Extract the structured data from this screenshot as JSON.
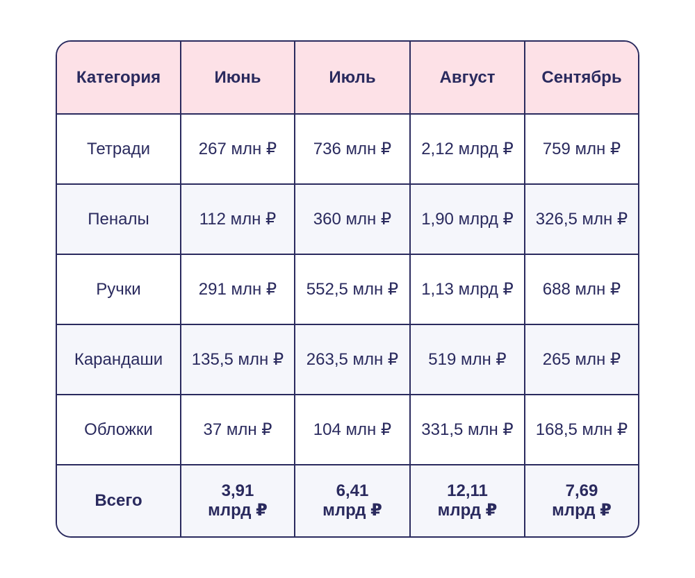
{
  "chart_data": {
    "type": "table",
    "columns": [
      "Категория",
      "Июнь",
      "Июль",
      "Август",
      "Сентябрь"
    ],
    "rows": [
      [
        "Тетради",
        "267 млн ₽",
        "736 млн ₽",
        "2,12 млрд ₽",
        "759 млн ₽"
      ],
      [
        "Пеналы",
        "112 млн ₽",
        "360 млн ₽",
        "1,90 млрд ₽",
        "326,5 млн ₽"
      ],
      [
        "Ручки",
        "291 млн ₽",
        "552,5 млн ₽",
        "1,13 млрд ₽",
        "688 млн ₽"
      ],
      [
        "Карандаши",
        "135,5 млн ₽",
        "263,5 млн ₽",
        "519 млн ₽",
        "265 млн ₽"
      ],
      [
        "Обложки",
        "37 млн ₽",
        "104 млн ₽",
        "331,5 млн ₽",
        "168,5 млн ₽"
      ]
    ],
    "total_row": [
      "Всего",
      "3,91 млрд ₽",
      "6,41 млрд ₽",
      "12,11 млрд ₽",
      "7,69 млрд ₽"
    ]
  },
  "colors": {
    "text": "#2a2a5e",
    "border": "#2a2a5e",
    "header_bg": "#fde1e7",
    "alt_row_bg": "#f5f6fb",
    "row_bg": "#ffffff"
  }
}
